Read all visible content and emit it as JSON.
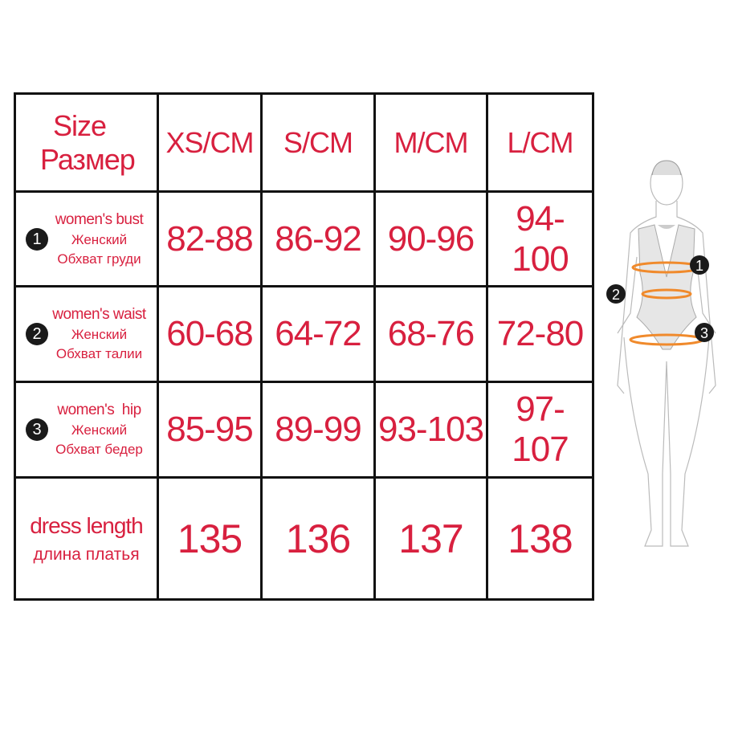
{
  "header": {
    "size_en": "Size",
    "size_ru": "Размер",
    "columns": [
      "XS/CM",
      "S/CM",
      "M/CM",
      "L/CM"
    ]
  },
  "rows": [
    {
      "badge": "1",
      "label_en": "women's bust",
      "label_ru1": "Женский",
      "label_ru2": "Обхват груди",
      "values": [
        "82-88",
        "86-92",
        "90-96",
        "94-100"
      ]
    },
    {
      "badge": "2",
      "label_en": "women's waist",
      "label_ru1": "Женский",
      "label_ru2": "Обхват талии",
      "values": [
        "60-68",
        "64-72",
        "68-76",
        "72-80"
      ]
    },
    {
      "badge": "3",
      "label_en": "women's  hip",
      "label_ru1": "Женский",
      "label_ru2": "Обхват бедер",
      "values": [
        "85-95",
        "89-99",
        "93-103",
        "97-107"
      ]
    }
  ],
  "dress": {
    "label_en": "dress length",
    "label_ru": "длина платья",
    "values": [
      "135",
      "136",
      "137",
      "138"
    ]
  },
  "figure": {
    "markers": [
      "1",
      "2",
      "3"
    ]
  },
  "colors": {
    "text": "#d8203f",
    "border": "#111111",
    "measure": "#f08a2c"
  }
}
